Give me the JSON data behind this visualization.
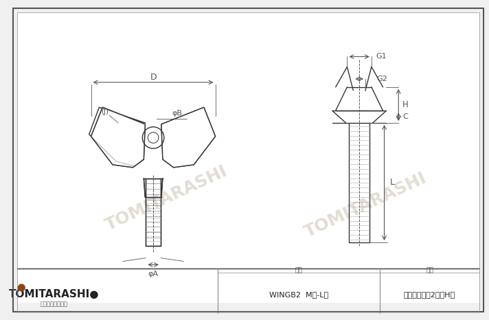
{
  "bg_color": "#f0f0f0",
  "border_color": "#333333",
  "line_color": "#333333",
  "dim_color": "#555555",
  "watermark_color": "#d0c8b8",
  "title_text": "冷間蝶ボルト2種（H）",
  "model_label": "型番",
  "model_value": "WINGB2  M径-L寸",
  "name_label": "品名",
  "name_value": "冷間蝶ボルト2種（H）",
  "company_name": "TOMITARASHI●",
  "company_sub": "富田螺子株式会社",
  "dim_labels": [
    "D",
    "(J)",
    "φB",
    "φA",
    "G1",
    "G2",
    "H",
    "C",
    "L"
  ],
  "watermark_text": "TOMITARASHI"
}
